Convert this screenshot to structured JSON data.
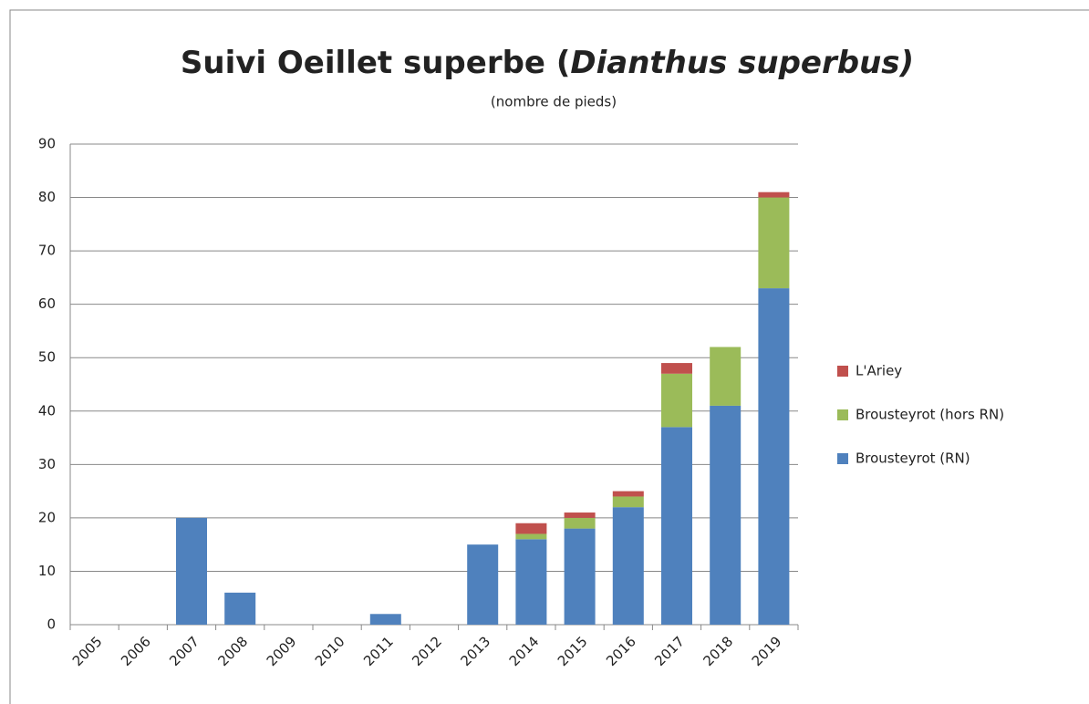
{
  "chart_data": {
    "type": "stacked_bar",
    "title": [
      "Suivi Oeillet superbe (",
      "Dianthus superbus)"
    ],
    "subtitle": "(nombre de pieds)",
    "categories": [
      "2005",
      "2006",
      "2007",
      "2008",
      "2009",
      "2010",
      "2011",
      "2012",
      "2013",
      "2014",
      "2015",
      "2016",
      "2017",
      "2018",
      "2019"
    ],
    "series": [
      {
        "name": "Brousteyrot (RN)",
        "color": "#4f81bd",
        "values": [
          0,
          0,
          20,
          6,
          0,
          0,
          2,
          0,
          15,
          16,
          18,
          22,
          37,
          41,
          63
        ]
      },
      {
        "name": "Brousteyrot (hors RN)",
        "color": "#9bbb59",
        "values": [
          0,
          0,
          0,
          0,
          0,
          0,
          0,
          0,
          0,
          1,
          2,
          2,
          10,
          11,
          17
        ]
      },
      {
        "name": "L'Ariey",
        "color": "#c0504d",
        "values": [
          0,
          0,
          0,
          0,
          0,
          0,
          0,
          0,
          0,
          2,
          1,
          1,
          2,
          0,
          1
        ]
      }
    ],
    "ylim": [
      0,
      90
    ],
    "yticks": [
      0,
      10,
      20,
      30,
      40,
      50,
      60,
      70,
      80,
      90
    ],
    "grid": true,
    "legend": "right"
  }
}
